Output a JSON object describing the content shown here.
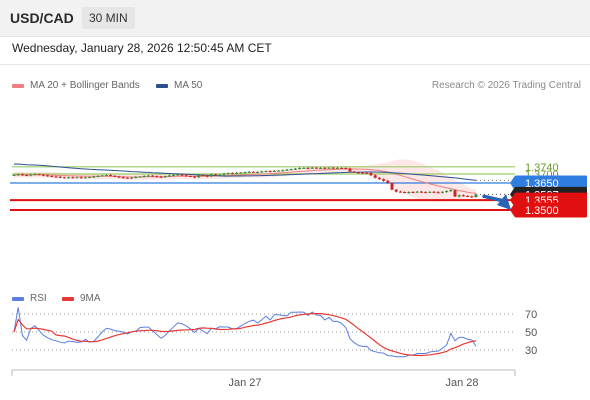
{
  "header": {
    "symbol": "USD/CAD",
    "timeframe": "30 MIN"
  },
  "subheader": {
    "datetime": "Wednesday, January 28, 2026 12:50:45 AM CET"
  },
  "legend": {
    "ma20_label": "MA 20 + Bollinger Bands",
    "ma50_label": "MA 50",
    "credit": "Research © 2026 Trading Central"
  },
  "rsi_legend": {
    "rsi_label": "RSI",
    "ma_label": "9MA"
  },
  "colors": {
    "ma20": "#f08080",
    "ma50": "#2e4f8f",
    "bollinger_fill": "#fde3e3",
    "resistance_green": "#9ccc65",
    "pivot_blue": "#2f7de1",
    "support_red": "#e01010",
    "candle_up": "#3a8a3a",
    "candle_down": "#c62828",
    "rsi_line": "#5b7fe0",
    "rsi_ma": "#e53935",
    "arrow": "#2a62b4"
  },
  "chart_data": {
    "type": "candlestick",
    "symbol": "USD/CAD",
    "timeframe": "30 MIN",
    "x_tick_labels": [
      "Jan 27",
      "Jan 28"
    ],
    "levels": [
      {
        "value": 1.374,
        "label": "1.3740",
        "kind": "resistance"
      },
      {
        "value": 1.37,
        "label": "1.3700",
        "kind": "resistance"
      },
      {
        "value": 1.365,
        "label": "1.3650",
        "kind": "pivot"
      },
      {
        "value": 1.3587,
        "label": "1.3587",
        "kind": "last_price"
      },
      {
        "value": 1.3555,
        "label": "1.3555",
        "kind": "support"
      },
      {
        "value": 1.35,
        "label": "1.3500",
        "kind": "support"
      }
    ],
    "price_range": [
      1.348,
      1.38
    ],
    "close_approx": [
      1.3695,
      1.3698,
      1.3694,
      1.3692,
      1.3697,
      1.3699,
      1.3696,
      1.3692,
      1.3689,
      1.3686,
      1.3684,
      1.3681,
      1.3679,
      1.3681,
      1.368,
      1.3682,
      1.3679,
      1.3681,
      1.3683,
      1.3686,
      1.3689,
      1.3692,
      1.3694,
      1.369,
      1.3686,
      1.3682,
      1.3679,
      1.3678,
      1.368,
      1.3683,
      1.3686,
      1.3689,
      1.3691,
      1.3688,
      1.3685,
      1.3682,
      1.3688,
      1.3692,
      1.3695,
      1.3697,
      1.3693,
      1.3689,
      1.3686,
      1.3682,
      1.3694,
      1.3691,
      1.3687,
      1.3698,
      1.3694,
      1.3696,
      1.3701,
      1.3705,
      1.3703,
      1.3706,
      1.3708,
      1.371,
      1.3712,
      1.371,
      1.3711,
      1.3714,
      1.3716,
      1.3715,
      1.3717,
      1.3719,
      1.3721,
      1.3724,
      1.3727,
      1.373,
      1.3733,
      1.3734,
      1.3732,
      1.3735,
      1.3733,
      1.3734,
      1.3731,
      1.3735,
      1.3732,
      1.3734,
      1.3733,
      1.373,
      1.3714,
      1.3709,
      1.3707,
      1.3706,
      1.3705,
      1.3693,
      1.3679,
      1.3671,
      1.3662,
      1.365,
      1.3613,
      1.3602,
      1.36,
      1.3596,
      1.36,
      1.3598,
      1.3602,
      1.3599,
      1.3598,
      1.3601,
      1.3599,
      1.3596,
      1.3601,
      1.3605,
      1.361,
      1.3575,
      1.3582,
      1.3578,
      1.3576,
      1.3572,
      1.3587
    ],
    "rsi": {
      "levels": [
        70,
        50,
        30
      ],
      "range": [
        0,
        100
      ],
      "last_approx": 34
    }
  }
}
